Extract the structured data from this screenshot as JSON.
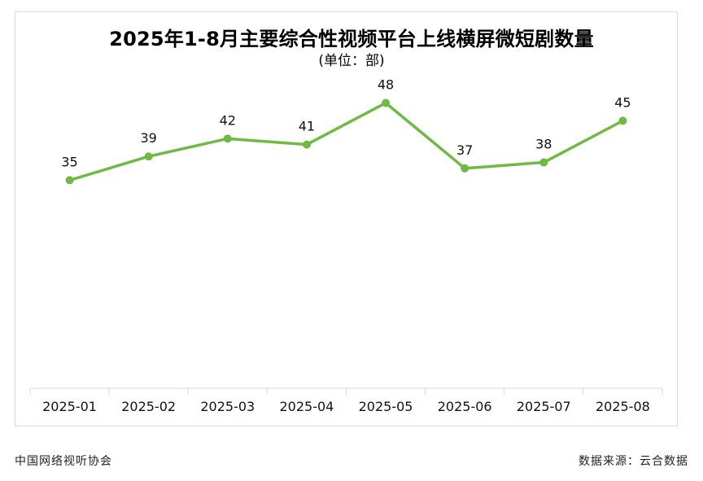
{
  "chart_data": {
    "type": "line",
    "title": "2025年1-8月主要综合性视频平台上线横屏微短剧数量",
    "subtitle": "(单位：部)",
    "categories": [
      "2025-01",
      "2025-02",
      "2025-03",
      "2025-04",
      "2025-05",
      "2025-06",
      "2025-07",
      "2025-08"
    ],
    "series": [
      {
        "values": [
          35,
          39,
          42,
          41,
          48,
          37,
          38,
          45
        ]
      }
    ],
    "data_labels": [
      "35",
      "39",
      "42",
      "41",
      "48",
      "37",
      "38",
      "45"
    ],
    "xlabel": "",
    "ylabel": "",
    "ylim": [
      0,
      53
    ],
    "grid": false,
    "line_color": "#70b944",
    "axis_color": "#d9d9d9"
  },
  "footer": {
    "source_left": "中国网络视听协会",
    "source_right": "数据来源：云合数据"
  }
}
